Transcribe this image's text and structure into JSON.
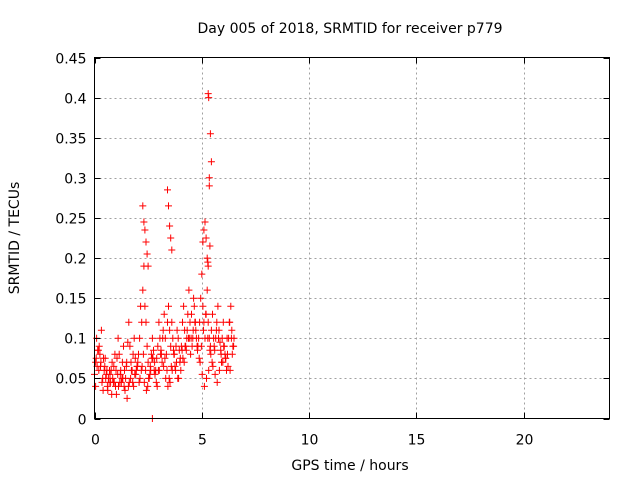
{
  "chart_data": {
    "type": "scatter",
    "title": "Day 005 of 2018, SRMTID for receiver p779",
    "xlabel": "GPS time / hours",
    "ylabel": "SRMTID / TECUs",
    "xlim": [
      0,
      24
    ],
    "ylim": [
      0,
      0.45
    ],
    "xticks": [
      0,
      5,
      10,
      15,
      20
    ],
    "xtick_labels": [
      "0",
      "5",
      "10",
      "15",
      "20"
    ],
    "yticks": [
      0,
      0.05,
      0.1,
      0.15,
      0.2,
      0.25,
      0.3,
      0.35,
      0.4,
      0.45
    ],
    "ytick_labels": [
      "0",
      "0.05",
      "0.1",
      "0.15",
      "0.2",
      "0.25",
      "0.3",
      "0.35",
      "0.4",
      "0.45"
    ],
    "grid": true,
    "marker": "+",
    "color": "#ff0000",
    "series": [
      {
        "name": "SRMTID",
        "x": [
          0.0,
          0.05,
          0.1,
          0.15,
          0.2,
          0.25,
          0.3,
          0.35,
          0.4,
          0.45,
          0.5,
          0.55,
          0.6,
          0.65,
          0.7,
          0.75,
          0.8,
          0.85,
          0.9,
          0.95,
          1.0,
          1.05,
          1.1,
          1.15,
          1.2,
          1.25,
          1.3,
          1.35,
          1.4,
          1.45,
          1.5,
          1.55,
          1.6,
          1.65,
          1.7,
          1.75,
          1.8,
          1.85,
          1.9,
          1.95,
          2.0,
          2.05,
          2.1,
          2.15,
          2.2,
          2.25,
          2.3,
          2.35,
          2.4,
          2.45,
          2.5,
          2.55,
          2.6,
          2.65,
          2.7,
          2.75,
          2.8,
          2.85,
          2.9,
          2.95,
          3.0,
          3.05,
          3.1,
          3.15,
          3.2,
          3.25,
          3.3,
          3.35,
          3.4,
          3.45,
          3.5,
          3.55,
          3.6,
          3.65,
          3.7,
          3.75,
          3.8,
          3.85,
          3.9,
          3.95,
          4.0,
          4.05,
          4.1,
          4.15,
          4.2,
          4.25,
          4.3,
          4.35,
          4.4,
          4.45,
          4.5,
          4.55,
          4.6,
          4.65,
          4.7,
          4.75,
          4.8,
          4.85,
          4.9,
          4.95,
          5.0,
          5.05,
          5.1,
          5.15,
          5.2,
          5.25,
          5.3,
          5.35,
          5.4,
          5.45,
          5.5,
          5.55,
          5.6,
          5.65,
          5.7,
          5.75,
          5.8,
          5.85,
          5.9,
          5.95,
          6.0,
          6.05,
          6.1,
          6.15,
          6.2,
          6.25,
          6.3,
          6.35,
          6.4,
          6.45,
          6.5,
          0.05,
          0.12,
          0.22,
          0.32,
          0.42,
          0.52,
          0.62,
          0.72,
          0.82,
          0.92,
          1.02,
          1.12,
          1.22,
          1.32,
          1.42,
          1.52,
          1.62,
          1.72,
          1.82,
          1.92,
          2.02,
          2.12,
          2.22,
          2.32,
          2.42,
          2.52,
          2.62,
          2.72,
          2.82,
          2.92,
          3.02,
          3.12,
          3.22,
          3.32,
          3.42,
          3.52,
          3.62,
          3.72,
          3.82,
          3.92,
          4.02,
          4.12,
          4.22,
          4.32,
          4.42,
          4.52,
          4.62,
          4.72,
          4.82,
          4.92,
          5.02,
          5.12,
          5.22,
          5.32,
          5.42,
          5.52,
          5.62,
          5.72,
          5.82,
          5.92,
          6.02,
          6.12,
          6.22,
          6.32,
          6.42,
          0.08,
          0.18,
          0.28,
          0.38,
          0.48,
          0.58,
          0.68,
          0.78,
          0.88,
          0.98,
          1.08,
          1.18,
          1.28,
          1.38,
          1.48,
          1.58,
          1.68,
          1.78,
          1.88,
          1.98,
          2.08,
          2.18,
          2.28,
          2.38,
          2.48,
          2.58,
          2.68,
          2.78,
          2.88,
          2.98,
          3.08,
          3.18,
          3.28,
          3.38,
          3.48,
          3.58,
          3.68,
          3.78,
          3.88,
          3.98,
          4.08,
          4.18,
          4.28,
          4.38,
          4.48,
          4.58,
          4.68,
          4.78,
          4.88,
          4.98,
          5.08,
          5.18,
          5.28,
          5.38,
          5.48,
          5.58,
          5.68,
          5.78,
          5.88,
          5.98,
          6.08,
          6.18,
          6.28,
          6.38,
          6.48,
          2.25,
          2.3,
          2.35,
          2.4,
          2.45,
          2.5,
          3.4,
          3.45,
          3.5,
          3.55,
          3.6,
          5.05,
          5.1,
          5.15,
          5.2,
          5.25,
          5.3,
          5.35,
          5.4,
          5.45,
          5.3,
          5.32,
          5.35,
          5.38,
          5.28,
          2.7
        ],
        "y": [
          0.055,
          0.07,
          0.1,
          0.085,
          0.06,
          0.08,
          0.07,
          0.045,
          0.035,
          0.06,
          0.075,
          0.055,
          0.04,
          0.05,
          0.06,
          0.045,
          0.03,
          0.05,
          0.065,
          0.08,
          0.06,
          0.075,
          0.1,
          0.08,
          0.055,
          0.045,
          0.07,
          0.09,
          0.06,
          0.05,
          0.07,
          0.095,
          0.12,
          0.09,
          0.07,
          0.06,
          0.08,
          0.1,
          0.075,
          0.06,
          0.065,
          0.08,
          0.1,
          0.14,
          0.12,
          0.16,
          0.19,
          0.14,
          0.12,
          0.09,
          0.07,
          0.05,
          0.065,
          0.08,
          0.1,
          0.085,
          0.07,
          0.06,
          0.075,
          0.09,
          0.12,
          0.1,
          0.085,
          0.07,
          0.11,
          0.13,
          0.1,
          0.08,
          0.12,
          0.14,
          0.11,
          0.09,
          0.12,
          0.1,
          0.08,
          0.065,
          0.09,
          0.11,
          0.1,
          0.085,
          0.075,
          0.09,
          0.12,
          0.14,
          0.11,
          0.09,
          0.1,
          0.13,
          0.16,
          0.12,
          0.1,
          0.09,
          0.11,
          0.14,
          0.12,
          0.1,
          0.085,
          0.1,
          0.12,
          0.15,
          0.18,
          0.14,
          0.12,
          0.1,
          0.13,
          0.16,
          0.12,
          0.1,
          0.09,
          0.11,
          0.13,
          0.1,
          0.085,
          0.1,
          0.12,
          0.14,
          0.11,
          0.095,
          0.08,
          0.1,
          0.12,
          0.09,
          0.075,
          0.06,
          0.08,
          0.1,
          0.12,
          0.14,
          0.11,
          0.09,
          0.1,
          0.04,
          0.065,
          0.09,
          0.11,
          0.075,
          0.05,
          0.035,
          0.055,
          0.07,
          0.045,
          0.03,
          0.04,
          0.06,
          0.05,
          0.035,
          0.025,
          0.045,
          0.06,
          0.04,
          0.055,
          0.07,
          0.05,
          0.065,
          0.045,
          0.035,
          0.05,
          0.06,
          0.075,
          0.055,
          0.04,
          0.06,
          0.08,
          0.065,
          0.05,
          0.04,
          0.045,
          0.06,
          0.08,
          0.07,
          0.05,
          0.06,
          0.075,
          0.09,
          0.11,
          0.1,
          0.13,
          0.15,
          0.11,
          0.09,
          0.07,
          0.055,
          0.04,
          0.05,
          0.06,
          0.08,
          0.065,
          0.055,
          0.045,
          0.06,
          0.07,
          0.09,
          0.075,
          0.065,
          0.06,
          0.08,
          0.075,
          0.085,
          0.065,
          0.05,
          0.065,
          0.06,
          0.045,
          0.06,
          0.045,
          0.04,
          0.055,
          0.045,
          0.05,
          0.04,
          0.065,
          0.04,
          0.05,
          0.045,
          0.055,
          0.065,
          0.045,
          0.06,
          0.08,
          0.06,
          0.04,
          0.055,
          0.075,
          0.06,
          0.045,
          0.06,
          0.08,
          0.1,
          0.075,
          0.06,
          0.05,
          0.065,
          0.085,
          0.06,
          0.05,
          0.07,
          0.085,
          0.07,
          0.085,
          0.1,
          0.08,
          0.1,
          0.12,
          0.09,
          0.075,
          0.09,
          0.11,
          0.13,
          0.1,
          0.085,
          0.07,
          0.09,
          0.11,
          0.1,
          0.085,
          0.07,
          0.08,
          0.1,
          0.12,
          0.1,
          0.09,
          0.265,
          0.245,
          0.235,
          0.22,
          0.205,
          0.19,
          0.285,
          0.265,
          0.24,
          0.225,
          0.21,
          0.22,
          0.235,
          0.245,
          0.225,
          0.2,
          0.19,
          0.3,
          0.355,
          0.32,
          0.405,
          0.4,
          0.29,
          0.215,
          0.195,
          0.0
        ]
      }
    ]
  }
}
